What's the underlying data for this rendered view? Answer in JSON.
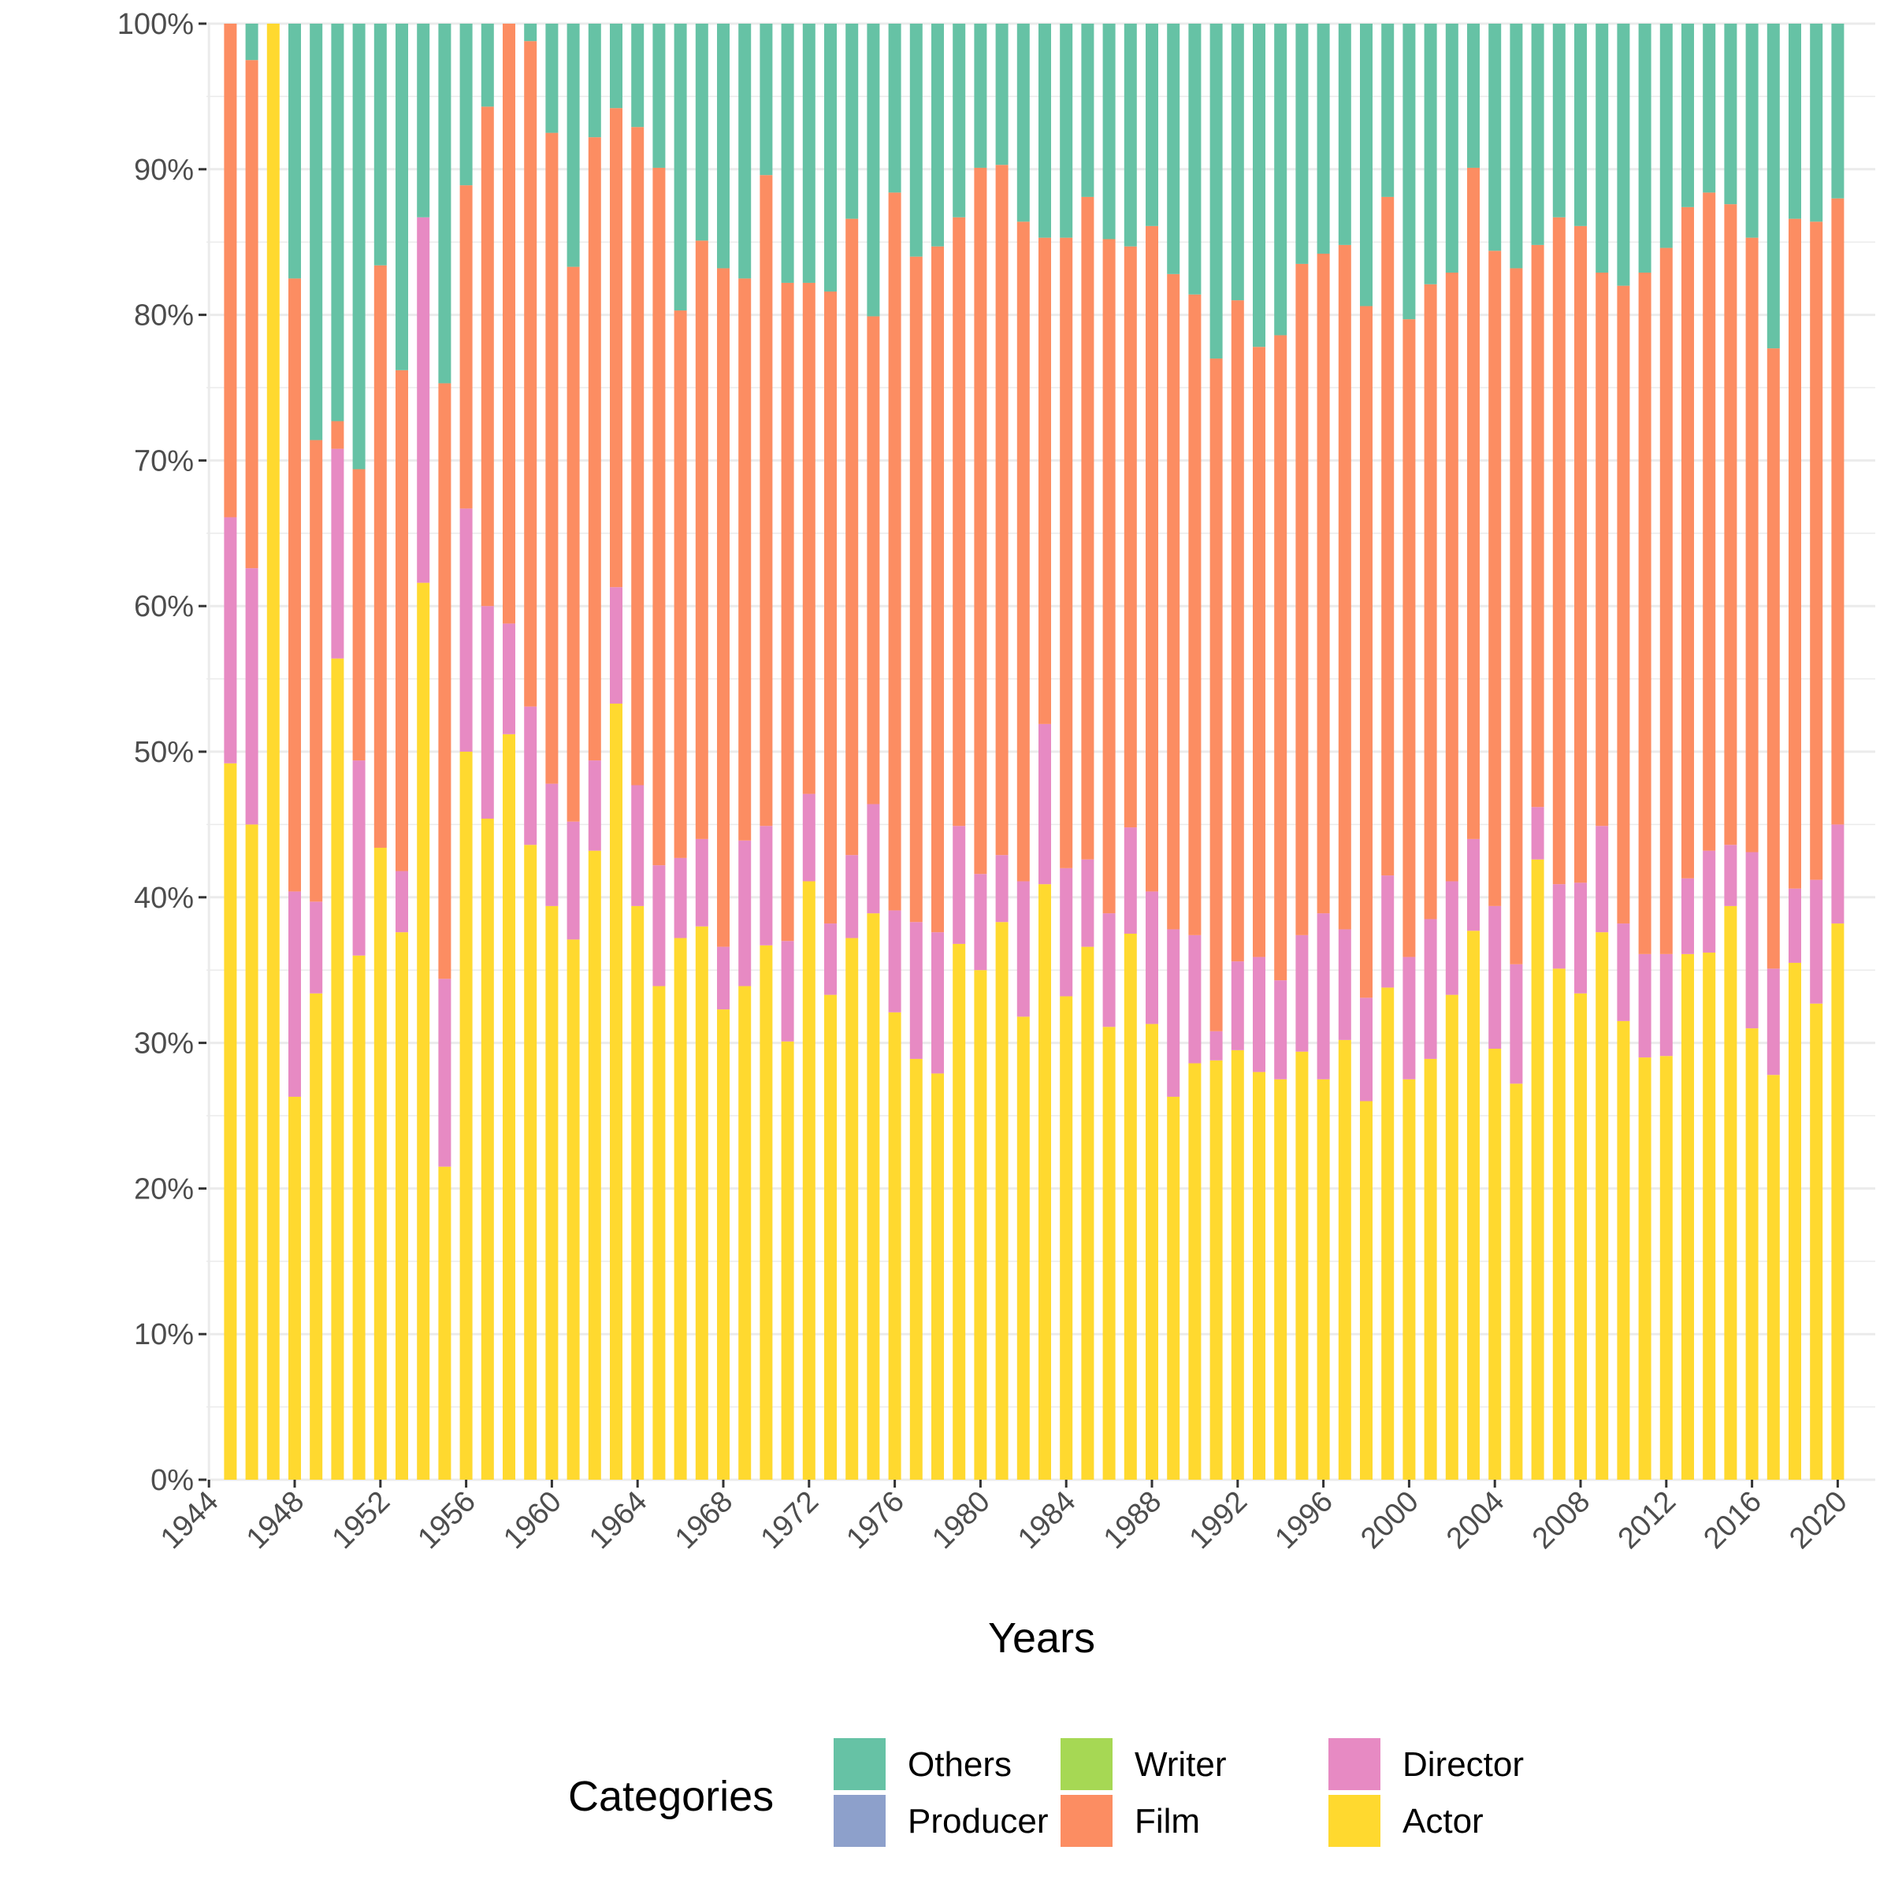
{
  "chart_data": {
    "type": "bar",
    "stacked": true,
    "percent": true,
    "xlabel": "Years",
    "ylabel": "",
    "ylim": [
      0,
      100
    ],
    "y_ticks": [
      "0%",
      "10%",
      "20%",
      "30%",
      "40%",
      "50%",
      "60%",
      "70%",
      "80%",
      "90%",
      "100%"
    ],
    "x_ticks": [
      "1944",
      "1948",
      "1952",
      "1956",
      "1960",
      "1964",
      "1968",
      "1972",
      "1976",
      "1980",
      "1984",
      "1988",
      "1992",
      "1996",
      "2000",
      "2004",
      "2008",
      "2012",
      "2016",
      "2020"
    ],
    "grid": true,
    "legend_position": "bottom",
    "legend": {
      "title": "Categories",
      "entries": [
        "Others",
        "Producer",
        "Writer",
        "Film",
        "Director",
        "Actor"
      ]
    },
    "colors": {
      "Actor": "#ffd92f",
      "Writer": "#a6d854",
      "Director": "#e78ac3",
      "Producer": "#8da0cb",
      "Film": "#fc8d62",
      "Others": "#66c2a5"
    },
    "stack_order": [
      "Actor",
      "Writer",
      "Director",
      "Producer",
      "Film",
      "Others"
    ],
    "categories": [
      1945,
      1946,
      1947,
      1948,
      1949,
      1950,
      1951,
      1952,
      1953,
      1954,
      1955,
      1956,
      1957,
      1958,
      1959,
      1960,
      1961,
      1962,
      1963,
      1964,
      1965,
      1966,
      1967,
      1968,
      1969,
      1970,
      1971,
      1972,
      1973,
      1974,
      1975,
      1976,
      1977,
      1978,
      1979,
      1980,
      1981,
      1982,
      1983,
      1984,
      1985,
      1986,
      1987,
      1988,
      1989,
      1990,
      1991,
      1992,
      1993,
      1994,
      1995,
      1996,
      1997,
      1998,
      1999,
      2000,
      2001,
      2002,
      2003,
      2004,
      2005,
      2006,
      2007,
      2008,
      2009,
      2010,
      2011,
      2012,
      2013,
      2014,
      2015,
      2016,
      2017,
      2018,
      2019,
      2020
    ],
    "series": [
      {
        "name": "Actor",
        "values": [
          49.2,
          45.0,
          100,
          26.3,
          33.4,
          56.4,
          36.0,
          43.4,
          37.6,
          61.6,
          21.5,
          50.0,
          45.4,
          51.2,
          43.6,
          39.4,
          37.1,
          43.2,
          53.3,
          39.4,
          33.9,
          37.2,
          38.0,
          32.3,
          33.9,
          36.7,
          30.1,
          41.1,
          33.3,
          37.2,
          38.9,
          32.1,
          28.9,
          27.9,
          36.8,
          35.0,
          38.3,
          31.8,
          40.9,
          33.2,
          36.6,
          31.1,
          37.5,
          31.3,
          26.3,
          28.6,
          28.8,
          29.5,
          28.0,
          27.5,
          29.4,
          27.5,
          30.2,
          26.0,
          33.8,
          27.5,
          28.9,
          33.3,
          37.7,
          29.6,
          27.2,
          42.6,
          35.1,
          33.4,
          37.6,
          31.5,
          29.0,
          29.1,
          36.1,
          36.2,
          39.4,
          31.0,
          27.8,
          35.5,
          32.7,
          38.2
        ]
      },
      {
        "name": "Writer",
        "values": [
          0,
          0,
          0,
          0,
          0,
          0,
          0,
          0,
          0,
          0,
          0,
          0,
          0,
          0,
          0,
          0,
          0,
          0,
          0,
          0,
          0,
          0,
          0,
          0,
          0,
          0,
          0,
          0,
          0,
          0,
          0,
          0,
          0,
          0,
          0,
          0,
          0,
          0,
          0,
          0,
          0,
          0,
          0,
          0,
          0,
          0,
          0,
          0,
          0,
          0,
          0,
          0,
          0,
          0,
          0,
          0,
          0,
          0,
          0,
          0,
          0,
          0,
          0,
          0,
          0,
          0,
          0,
          0,
          0,
          0,
          0,
          0,
          0,
          0,
          0,
          0
        ]
      },
      {
        "name": "Director",
        "values": [
          16.9,
          17.6,
          0,
          14.1,
          6.3,
          14.4,
          13.4,
          0,
          4.2,
          25.1,
          12.9,
          16.7,
          14.6,
          7.6,
          9.5,
          8.4,
          8.1,
          6.2,
          8.0,
          8.3,
          8.3,
          5.5,
          6.0,
          4.3,
          10.0,
          8.2,
          6.9,
          6.0,
          4.9,
          5.7,
          7.5,
          7.0,
          9.4,
          9.7,
          8.1,
          6.6,
          4.6,
          9.3,
          11.0,
          8.8,
          6.0,
          7.8,
          7.3,
          9.1,
          11.5,
          8.8,
          2.0,
          6.1,
          7.9,
          6.8,
          8.0,
          11.4,
          7.6,
          7.1,
          7.7,
          8.4,
          9.6,
          7.8,
          6.3,
          9.8,
          8.2,
          3.6,
          5.8,
          7.6,
          7.3,
          6.7,
          7.1,
          7.0,
          5.2,
          7.0,
          4.2,
          12.1,
          7.3,
          5.1,
          8.5,
          6.8
        ]
      },
      {
        "name": "Producer",
        "values": [
          0,
          0,
          0,
          0,
          0,
          0,
          0,
          0,
          0,
          0,
          0,
          0,
          0,
          0,
          0,
          0,
          0,
          0,
          0,
          0,
          0,
          0,
          0,
          0,
          0,
          0,
          0,
          0,
          0,
          0,
          0,
          0,
          0,
          0,
          0,
          0,
          0,
          0,
          0,
          0,
          0,
          0,
          0,
          0,
          0,
          0,
          0,
          0,
          0,
          0,
          0,
          0,
          0,
          0,
          0,
          0,
          0,
          0,
          0,
          0,
          0,
          0,
          0,
          0,
          0,
          0,
          0,
          0,
          0,
          0,
          0,
          0,
          0,
          0,
          0,
          0
        ]
      },
      {
        "name": "Film",
        "values": [
          33.9,
          34.9,
          0,
          42.1,
          31.7,
          1.9,
          20.0,
          40.0,
          34.4,
          0,
          40.9,
          22.2,
          34.3,
          41.2,
          45.7,
          44.7,
          38.1,
          42.8,
          32.9,
          45.2,
          47.9,
          37.6,
          41.1,
          46.6,
          38.6,
          44.7,
          45.2,
          35.1,
          43.4,
          43.7,
          33.5,
          49.3,
          45.7,
          47.1,
          41.8,
          48.5,
          47.4,
          45.3,
          33.4,
          43.3,
          45.5,
          46.3,
          39.9,
          45.7,
          45.0,
          44.0,
          46.2,
          45.4,
          41.9,
          44.3,
          46.1,
          45.3,
          47.0,
          47.5,
          46.6,
          43.8,
          43.6,
          41.8,
          46.1,
          45.0,
          47.8,
          38.6,
          45.8,
          45.1,
          38.0,
          43.8,
          46.8,
          48.5,
          46.1,
          45.2,
          44.0,
          42.2,
          42.6,
          46.0,
          45.2,
          43.0
        ]
      },
      {
        "name": "Others",
        "values": [
          0,
          2.5,
          0,
          17.5,
          28.6,
          27.3,
          30.6,
          16.6,
          23.8,
          13.3,
          24.7,
          11.1,
          5.7,
          0,
          1.2,
          7.5,
          16.7,
          7.8,
          5.8,
          7.1,
          9.9,
          19.7,
          14.9,
          16.8,
          17.5,
          10.4,
          17.8,
          17.8,
          18.4,
          13.4,
          20.1,
          11.6,
          16.0,
          15.3,
          13.3,
          9.9,
          9.7,
          13.6,
          14.7,
          14.7,
          11.9,
          14.8,
          15.3,
          13.9,
          17.2,
          18.6,
          23.0,
          19.0,
          22.2,
          21.4,
          16.5,
          15.8,
          15.2,
          19.4,
          11.9,
          20.3,
          17.9,
          17.1,
          9.9,
          15.6,
          16.8,
          15.2,
          13.3,
          13.9,
          17.1,
          18.0,
          17.1,
          15.4,
          12.6,
          11.6,
          12.4,
          14.7,
          22.3,
          13.4,
          13.6,
          12.0
        ]
      }
    ]
  }
}
